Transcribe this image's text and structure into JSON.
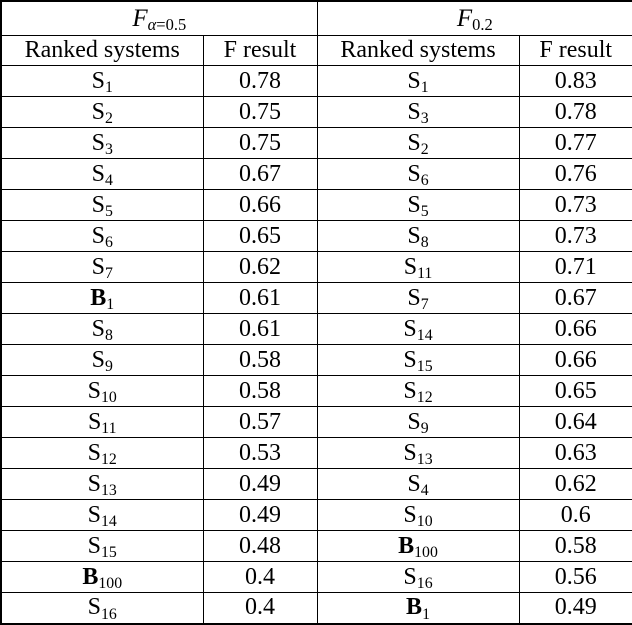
{
  "table": {
    "groups": [
      {
        "symbol": "F",
        "subscript_greek": "α",
        "subscript_rest": "=0.5"
      },
      {
        "symbol": "F",
        "subscript_greek": "",
        "subscript_rest": "0.2"
      }
    ],
    "column_headers": [
      "Ranked systems",
      "F result",
      "Ranked systems",
      "F result"
    ],
    "left_rows": [
      {
        "system": "S",
        "sub": "1",
        "bold": false,
        "result": "0.78"
      },
      {
        "system": "S",
        "sub": "2",
        "bold": false,
        "result": "0.75"
      },
      {
        "system": "S",
        "sub": "3",
        "bold": false,
        "result": "0.75"
      },
      {
        "system": "S",
        "sub": "4",
        "bold": false,
        "result": "0.67"
      },
      {
        "system": "S",
        "sub": "5",
        "bold": false,
        "result": "0.66"
      },
      {
        "system": "S",
        "sub": "6",
        "bold": false,
        "result": "0.65"
      },
      {
        "system": "S",
        "sub": "7",
        "bold": false,
        "result": "0.62"
      },
      {
        "system": "B",
        "sub": "1",
        "bold": true,
        "result": "0.61"
      },
      {
        "system": "S",
        "sub": "8",
        "bold": false,
        "result": "0.61"
      },
      {
        "system": "S",
        "sub": "9",
        "bold": false,
        "result": "0.58"
      },
      {
        "system": "S",
        "sub": "10",
        "bold": false,
        "result": "0.58"
      },
      {
        "system": "S",
        "sub": "11",
        "bold": false,
        "result": "0.57"
      },
      {
        "system": "S",
        "sub": "12",
        "bold": false,
        "result": "0.53"
      },
      {
        "system": "S",
        "sub": "13",
        "bold": false,
        "result": "0.49"
      },
      {
        "system": "S",
        "sub": "14",
        "bold": false,
        "result": "0.49"
      },
      {
        "system": "S",
        "sub": "15",
        "bold": false,
        "result": "0.48"
      },
      {
        "system": "B",
        "sub": "100",
        "bold": true,
        "result": "0.4"
      },
      {
        "system": "S",
        "sub": "16",
        "bold": false,
        "result": "0.4"
      }
    ],
    "right_rows": [
      {
        "system": "S",
        "sub": "1",
        "bold": false,
        "result": "0.83"
      },
      {
        "system": "S",
        "sub": "3",
        "bold": false,
        "result": "0.78"
      },
      {
        "system": "S",
        "sub": "2",
        "bold": false,
        "result": "0.77"
      },
      {
        "system": "S",
        "sub": "6",
        "bold": false,
        "result": "0.76"
      },
      {
        "system": "S",
        "sub": "5",
        "bold": false,
        "result": "0.73"
      },
      {
        "system": "S",
        "sub": "8",
        "bold": false,
        "result": "0.73"
      },
      {
        "system": "S",
        "sub": "11",
        "bold": false,
        "result": "0.71"
      },
      {
        "system": "S",
        "sub": "7",
        "bold": false,
        "result": "0.67"
      },
      {
        "system": "S",
        "sub": "14",
        "bold": false,
        "result": "0.66"
      },
      {
        "system": "S",
        "sub": "15",
        "bold": false,
        "result": "0.66"
      },
      {
        "system": "S",
        "sub": "12",
        "bold": false,
        "result": "0.65"
      },
      {
        "system": "S",
        "sub": "9",
        "bold": false,
        "result": "0.64"
      },
      {
        "system": "S",
        "sub": "13",
        "bold": false,
        "result": "0.63"
      },
      {
        "system": "S",
        "sub": "4",
        "bold": false,
        "result": "0.62"
      },
      {
        "system": "S",
        "sub": "10",
        "bold": false,
        "result": "0.6"
      },
      {
        "system": "B",
        "sub": "100",
        "bold": true,
        "result": "0.58"
      },
      {
        "system": "S",
        "sub": "16",
        "bold": false,
        "result": "0.56"
      },
      {
        "system": "B",
        "sub": "1",
        "bold": true,
        "result": "0.49"
      }
    ],
    "colors": {
      "text": "#000000",
      "border": "#000000",
      "background": "#ffffff"
    }
  }
}
